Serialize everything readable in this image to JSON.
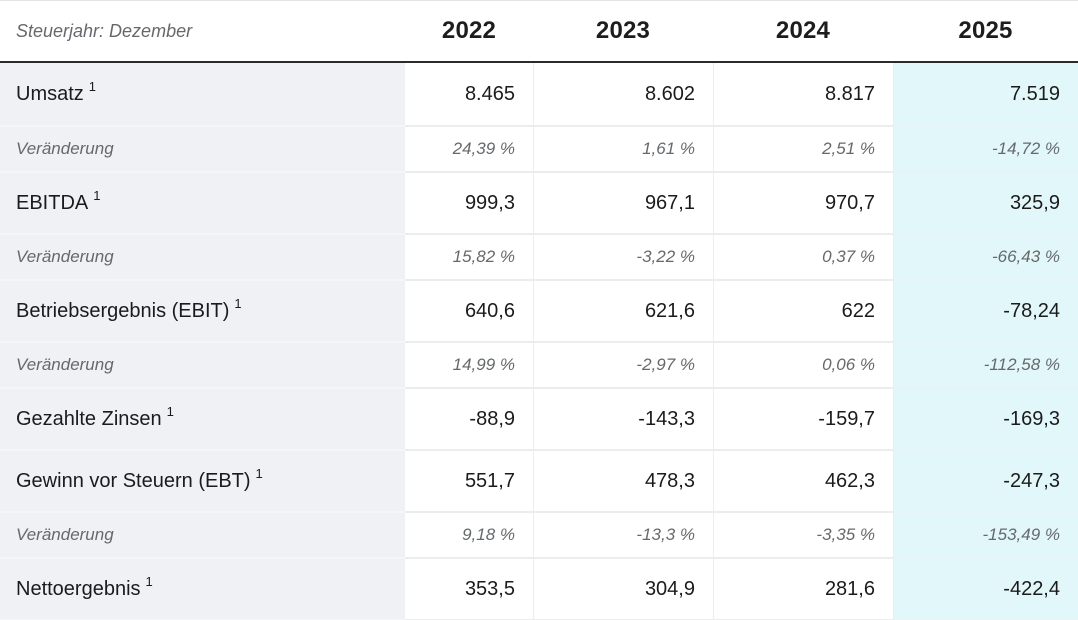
{
  "chart_data": {
    "type": "table",
    "title": "Steuerjahr: Dezember",
    "columns": [
      "2022",
      "2023",
      "2024",
      "2025"
    ],
    "rows": [
      {
        "label": "Umsatz",
        "footnote": "1",
        "style": "main",
        "values": [
          "8.465",
          "8.602",
          "8.817",
          "7.519"
        ]
      },
      {
        "label": "Veränderung",
        "style": "pct",
        "values": [
          "24,39 %",
          "1,61 %",
          "2,51 %",
          "-14,72 %"
        ]
      },
      {
        "label": "EBITDA",
        "footnote": "1",
        "style": "main",
        "values": [
          "999,3",
          "967,1",
          "970,7",
          "325,9"
        ]
      },
      {
        "label": "Veränderung",
        "style": "pct",
        "values": [
          "15,82 %",
          "-3,22 %",
          "0,37 %",
          "-66,43 %"
        ]
      },
      {
        "label": "Betriebsergebnis (EBIT)",
        "footnote": "1",
        "style": "main",
        "values": [
          "640,6",
          "621,6",
          "622",
          "-78,24"
        ]
      },
      {
        "label": "Veränderung",
        "style": "pct",
        "values": [
          "14,99 %",
          "-2,97 %",
          "0,06 %",
          "-112,58 %"
        ]
      },
      {
        "label": "Gezahlte Zinsen",
        "footnote": "1",
        "style": "main",
        "values": [
          "-88,9",
          "-143,3",
          "-159,7",
          "-169,3"
        ]
      },
      {
        "label": "Gewinn vor Steuern (EBT)",
        "footnote": "1",
        "style": "main",
        "values": [
          "551,7",
          "478,3",
          "462,3",
          "-247,3"
        ]
      },
      {
        "label": "Veränderung",
        "style": "pct",
        "values": [
          "9,18 %",
          "-13,3 %",
          "-3,35 %",
          "-153,49 %"
        ]
      },
      {
        "label": "Nettoergebnis",
        "footnote": "1",
        "style": "main",
        "values": [
          "353,5",
          "304,9",
          "281,6",
          "-422,4"
        ]
      }
    ],
    "layout_hints": {
      "highlight_column": "2025",
      "label_column_align": "left",
      "value_align": "right",
      "year_header_align": "center"
    }
  },
  "colors": {
    "highlight_column_bg": "#e2f7f9",
    "label_column_bg": "#eff1f4",
    "header_rule": "#2b2b2b",
    "text_dark": "#1b1b1b",
    "text_muted": "#66696c",
    "row_divider": "#ececee"
  }
}
